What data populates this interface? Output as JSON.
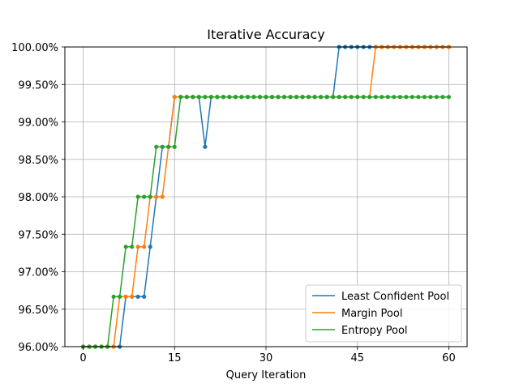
{
  "chart_data": {
    "type": "line",
    "title": "Iterative Accuracy",
    "xlabel": "Query Iteration",
    "ylabel": "",
    "xlim": [
      -3,
      63
    ],
    "ylim": [
      96.0,
      100.0
    ],
    "x_ticks": [
      0,
      15,
      30,
      45,
      60
    ],
    "y_ticks": [
      96.0,
      96.5,
      97.0,
      97.5,
      98.0,
      98.5,
      99.0,
      99.5,
      100.0
    ],
    "y_tick_labels": [
      "96.00%",
      "96.50%",
      "97.00%",
      "97.50%",
      "98.00%",
      "98.50%",
      "99.00%",
      "99.50%",
      "100.00%"
    ],
    "grid": true,
    "legend_position": "bottom-right",
    "x": [
      0,
      1,
      2,
      3,
      4,
      5,
      6,
      7,
      8,
      9,
      10,
      11,
      12,
      13,
      14,
      15,
      16,
      17,
      18,
      19,
      20,
      21,
      22,
      23,
      24,
      25,
      26,
      27,
      28,
      29,
      30,
      31,
      32,
      33,
      34,
      35,
      36,
      37,
      38,
      39,
      40,
      41,
      42,
      43,
      44,
      45,
      46,
      47,
      48,
      49,
      50,
      51,
      52,
      53,
      54,
      55,
      56,
      57,
      58,
      59,
      60
    ],
    "series": [
      {
        "name": "Least Confident Pool",
        "color": "#1f77b4",
        "values": [
          96.0,
          96.0,
          96.0,
          96.0,
          96.0,
          96.0,
          96.0,
          96.667,
          96.667,
          96.667,
          96.667,
          97.333,
          98.0,
          98.667,
          98.667,
          99.333,
          99.333,
          99.333,
          99.333,
          99.333,
          98.667,
          99.333,
          99.333,
          99.333,
          99.333,
          99.333,
          99.333,
          99.333,
          99.333,
          99.333,
          99.333,
          99.333,
          99.333,
          99.333,
          99.333,
          99.333,
          99.333,
          99.333,
          99.333,
          99.333,
          99.333,
          99.333,
          100.0,
          100.0,
          100.0,
          100.0,
          100.0,
          100.0,
          100.0,
          100.0,
          100.0,
          100.0,
          100.0,
          100.0,
          100.0,
          100.0,
          100.0,
          100.0,
          100.0,
          100.0,
          100.0
        ]
      },
      {
        "name": "Margin Pool",
        "color": "#ff7f0e",
        "values": [
          96.0,
          96.0,
          96.0,
          96.0,
          96.0,
          96.0,
          96.667,
          96.667,
          96.667,
          97.333,
          97.333,
          98.0,
          98.0,
          98.0,
          98.667,
          99.333,
          99.333,
          99.333,
          99.333,
          99.333,
          99.333,
          99.333,
          99.333,
          99.333,
          99.333,
          99.333,
          99.333,
          99.333,
          99.333,
          99.333,
          99.333,
          99.333,
          99.333,
          99.333,
          99.333,
          99.333,
          99.333,
          99.333,
          99.333,
          99.333,
          99.333,
          99.333,
          99.333,
          99.333,
          99.333,
          99.333,
          99.333,
          99.333,
          100.0,
          100.0,
          100.0,
          100.0,
          100.0,
          100.0,
          100.0,
          100.0,
          100.0,
          100.0,
          100.0,
          100.0,
          100.0
        ]
      },
      {
        "name": "Entropy Pool",
        "color": "#2ca02c",
        "values": [
          96.0,
          96.0,
          96.0,
          96.0,
          96.0,
          96.667,
          96.667,
          97.333,
          97.333,
          98.0,
          98.0,
          98.0,
          98.667,
          98.667,
          98.667,
          98.667,
          99.333,
          99.333,
          99.333,
          99.333,
          99.333,
          99.333,
          99.333,
          99.333,
          99.333,
          99.333,
          99.333,
          99.333,
          99.333,
          99.333,
          99.333,
          99.333,
          99.333,
          99.333,
          99.333,
          99.333,
          99.333,
          99.333,
          99.333,
          99.333,
          99.333,
          99.333,
          99.333,
          99.333,
          99.333,
          99.333,
          99.333,
          99.333,
          99.333,
          99.333,
          99.333,
          99.333,
          99.333,
          99.333,
          99.333,
          99.333,
          99.333,
          99.333,
          99.333,
          99.333,
          99.333
        ]
      }
    ]
  }
}
